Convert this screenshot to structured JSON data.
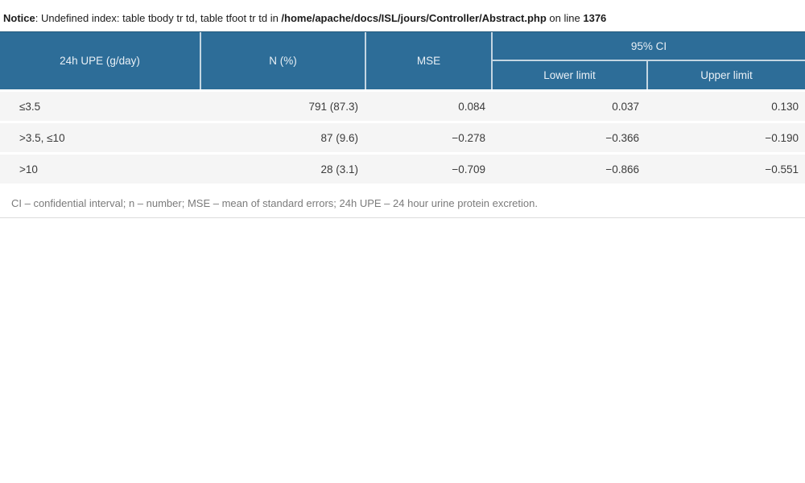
{
  "notice": {
    "label": "Notice",
    "message_before_path": ": Undefined index: table tbody tr td, table tfoot tr td in ",
    "file_path": "/home/apache/docs/ISL/jours/Controller/Abstract.php",
    "on_line_text": " on line ",
    "line_number": "1376"
  },
  "table": {
    "headers": {
      "upe": "24h UPE (g/day)",
      "n": "N (%)",
      "mse": "MSE",
      "ci_group": "95% CI",
      "ci_lower": "Lower limit",
      "ci_upper": "Upper limit"
    },
    "rows": [
      {
        "upe": "≤3.5",
        "n": "791 (87.3)",
        "mse": "0.084",
        "lower": "0.037",
        "upper": "0.130"
      },
      {
        "upe": ">3.5, ≤10",
        "n": "87 (9.6)",
        "mse": "−0.278",
        "lower": "−0.366",
        "upper": "−0.190"
      },
      {
        "upe": ">10",
        "n": "28 (3.1)",
        "mse": "−0.709",
        "lower": "−0.866",
        "upper": "−0.551"
      }
    ],
    "footnote": "CI – confidential interval; n – number; MSE – mean of standard errors; 24h UPE – 24 hour urine protein excretion."
  },
  "colors": {
    "header_bg": "#2d6d98",
    "header_text": "#e9f0f6",
    "header_divider": "rgba(255,255,255,0.72)",
    "row_bg": "#f5f5f5",
    "body_text": "#3b3b3b",
    "footnote_text": "#7b7b7b",
    "bottom_rule": "#dcdcdc"
  }
}
